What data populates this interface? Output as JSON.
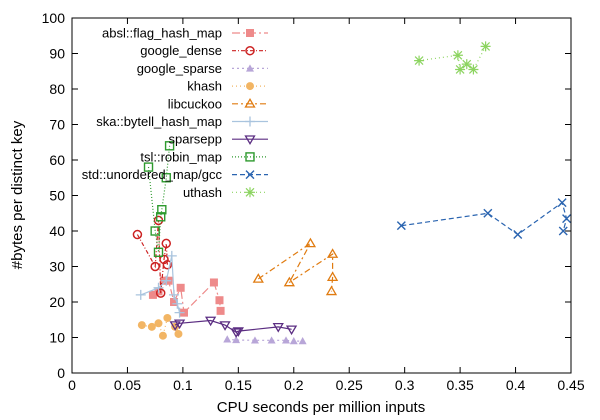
{
  "chart_data": {
    "type": "scatter",
    "title": "",
    "xlabel": "CPU seconds per million inputs",
    "ylabel": "#bytes per distinct key",
    "xlim": [
      0,
      0.45
    ],
    "ylim": [
      0,
      100
    ],
    "x_ticks": [
      0,
      0.05,
      0.1,
      0.15,
      0.2,
      0.25,
      0.3,
      0.35,
      0.4,
      0.45
    ],
    "x_tick_labels": [
      "0",
      "0.05",
      "0.1",
      "0.15",
      "0.2",
      "0.25",
      "0.3",
      "0.35",
      "0.4",
      "0.45"
    ],
    "y_ticks": [
      0,
      10,
      20,
      30,
      40,
      50,
      60,
      70,
      80,
      90,
      100
    ],
    "y_tick_labels": [
      "0",
      "10",
      "20",
      "30",
      "40",
      "50",
      "60",
      "70",
      "80",
      "90",
      "100"
    ],
    "grid": false,
    "legend_position": "top-left",
    "series": [
      {
        "name": "absl::flag_hash_map",
        "color": "#ee8a8a",
        "marker": "square-filled",
        "dash": "8,3,2,3",
        "points": [
          [
            0.073,
            22
          ],
          [
            0.078,
            23
          ],
          [
            0.083,
            26
          ],
          [
            0.087,
            26
          ],
          [
            0.092,
            20
          ],
          [
            0.098,
            24
          ],
          [
            0.101,
            17
          ],
          [
            0.128,
            25.5
          ],
          [
            0.133,
            20.5
          ],
          [
            0.134,
            17.5
          ]
        ]
      },
      {
        "name": "google_dense",
        "color": "#cc2222",
        "marker": "circle-open",
        "dash": "4,2,1,2",
        "points": [
          [
            0.059,
            39
          ],
          [
            0.075,
            30
          ],
          [
            0.078,
            43
          ],
          [
            0.08,
            22.5
          ],
          [
            0.083,
            32
          ],
          [
            0.085,
            36.5
          ],
          [
            0.086,
            30.5
          ]
        ]
      },
      {
        "name": "google_sparse",
        "color": "#b8a6d8",
        "marker": "triangle-filled",
        "dash": "2,3",
        "points": [
          [
            0.14,
            9.5
          ],
          [
            0.148,
            9.3
          ],
          [
            0.165,
            9.2
          ],
          [
            0.18,
            9.2
          ],
          [
            0.193,
            9.2
          ],
          [
            0.2,
            9.0
          ],
          [
            0.208,
            9.0
          ]
        ]
      },
      {
        "name": "khash",
        "color": "#f2b564",
        "marker": "circle-filled",
        "dash": "1,3",
        "points": [
          [
            0.063,
            13.5
          ],
          [
            0.072,
            13
          ],
          [
            0.078,
            14
          ],
          [
            0.082,
            10.5
          ],
          [
            0.086,
            15.5
          ],
          [
            0.093,
            13
          ],
          [
            0.096,
            11
          ]
        ]
      },
      {
        "name": "libcuckoo",
        "color": "#e07b10",
        "marker": "triangle-open",
        "dash": "6,3,2,3",
        "points": [
          [
            0.168,
            26.5
          ],
          [
            0.215,
            36.5
          ],
          [
            0.196,
            25.5
          ],
          [
            0.235,
            33.5
          ],
          [
            0.235,
            27
          ],
          [
            0.234,
            23
          ]
        ]
      },
      {
        "name": "ska::bytell_hash_map",
        "color": "#a9c4de",
        "marker": "plus",
        "dash": "",
        "points": [
          [
            0.062,
            22
          ],
          [
            0.078,
            24
          ],
          [
            0.085,
            26
          ],
          [
            0.09,
            33
          ],
          [
            0.092,
            22
          ],
          [
            0.095,
            19.5
          ],
          [
            0.097,
            17
          ]
        ]
      },
      {
        "name": "sparsepp",
        "color": "#5b2d82",
        "marker": "triangle-down-open",
        "dash": "",
        "points": [
          [
            0.093,
            13.5
          ],
          [
            0.097,
            14
          ],
          [
            0.125,
            14.8
          ],
          [
            0.138,
            13.5
          ],
          [
            0.148,
            11.5
          ],
          [
            0.15,
            11.8
          ],
          [
            0.186,
            13
          ],
          [
            0.198,
            12.3
          ]
        ]
      },
      {
        "name": "tsl::robin_map",
        "color": "#2e9a2e",
        "marker": "square-open",
        "dash": "1,2",
        "points": [
          [
            0.069,
            58
          ],
          [
            0.075,
            40
          ],
          [
            0.078,
            34
          ],
          [
            0.08,
            44
          ],
          [
            0.081,
            46
          ],
          [
            0.085,
            55
          ],
          [
            0.088,
            64
          ]
        ]
      },
      {
        "name": "std::unordered_map/gcc",
        "color": "#2a64b0",
        "marker": "cross",
        "dash": "5,3",
        "points": [
          [
            0.297,
            41.5
          ],
          [
            0.375,
            45
          ],
          [
            0.402,
            39
          ],
          [
            0.442,
            48
          ],
          [
            0.446,
            43.5
          ],
          [
            0.443,
            40
          ]
        ]
      },
      {
        "name": "uthash",
        "color": "#8cd460",
        "marker": "asterisk",
        "dash": "1,3",
        "points": [
          [
            0.313,
            88
          ],
          [
            0.348,
            89.5
          ],
          [
            0.35,
            85.5
          ],
          [
            0.356,
            87
          ],
          [
            0.362,
            85.5
          ],
          [
            0.373,
            92
          ]
        ]
      }
    ]
  }
}
